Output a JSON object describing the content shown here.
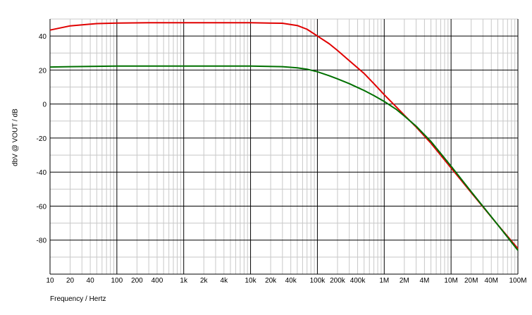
{
  "chart_data": {
    "type": "line",
    "xlabel": "Frequency / Hertz",
    "ylabel": "dbV @ VOUT / dB",
    "x_scale": "log",
    "xlim": [
      10,
      100000000
    ],
    "ylim": [
      -100,
      50
    ],
    "x_ticks": [
      {
        "value": 10,
        "label": "10"
      },
      {
        "value": 20,
        "label": "20"
      },
      {
        "value": 40,
        "label": "40"
      },
      {
        "value": 100,
        "label": "100"
      },
      {
        "value": 200,
        "label": "200"
      },
      {
        "value": 400,
        "label": "400"
      },
      {
        "value": 1000,
        "label": "1k"
      },
      {
        "value": 2000,
        "label": "2k"
      },
      {
        "value": 4000,
        "label": "4k"
      },
      {
        "value": 10000,
        "label": "10k"
      },
      {
        "value": 20000,
        "label": "20k"
      },
      {
        "value": 40000,
        "label": "40k"
      },
      {
        "value": 100000,
        "label": "100k"
      },
      {
        "value": 200000,
        "label": "200k"
      },
      {
        "value": 400000,
        "label": "400k"
      },
      {
        "value": 1000000,
        "label": "1M"
      },
      {
        "value": 2000000,
        "label": "2M"
      },
      {
        "value": 4000000,
        "label": "4M"
      },
      {
        "value": 10000000,
        "label": "10M"
      },
      {
        "value": 20000000,
        "label": "20M"
      },
      {
        "value": 40000000,
        "label": "40M"
      },
      {
        "value": 100000000,
        "label": "100M"
      }
    ],
    "y_ticks": [
      {
        "value": 40,
        "label": "40"
      },
      {
        "value": 20,
        "label": "20"
      },
      {
        "value": 0,
        "label": "0"
      },
      {
        "value": -20,
        "label": "-20"
      },
      {
        "value": -40,
        "label": "-40"
      },
      {
        "value": -60,
        "label": "-60"
      },
      {
        "value": -80,
        "label": "-80"
      }
    ],
    "grid": true,
    "series": [
      {
        "color": "#e00000",
        "x": [
          10,
          20,
          50,
          100,
          300,
          1000,
          10000,
          30000,
          50000,
          70000,
          100000,
          150000,
          200000,
          300000,
          500000,
          700000,
          1000000,
          1500000,
          2000000,
          3000000,
          5000000,
          10000000,
          20000000,
          50000000,
          100000000
        ],
        "y": [
          43.5,
          46.0,
          47.3,
          47.6,
          47.8,
          47.8,
          47.8,
          47.5,
          46.2,
          44.0,
          40.0,
          35.5,
          31.5,
          25.5,
          18.0,
          12.0,
          5.5,
          -1.5,
          -6.5,
          -13.5,
          -23.0,
          -37.5,
          -52.0,
          -71.0,
          -85.0
        ]
      },
      {
        "color": "#007000",
        "x": [
          10,
          20,
          50,
          100,
          300,
          1000,
          10000,
          30000,
          50000,
          70000,
          100000,
          150000,
          200000,
          300000,
          500000,
          700000,
          1000000,
          1500000,
          2000000,
          3000000,
          5000000,
          10000000,
          20000000,
          50000000,
          100000000
        ],
        "y": [
          21.8,
          22.0,
          22.2,
          22.3,
          22.3,
          22.3,
          22.3,
          22.0,
          21.3,
          20.5,
          19.0,
          16.7,
          14.8,
          12.0,
          8.0,
          5.0,
          1.5,
          -3.0,
          -7.0,
          -13.0,
          -22.0,
          -36.5,
          -51.5,
          -71.0,
          -86.0
        ]
      }
    ]
  }
}
